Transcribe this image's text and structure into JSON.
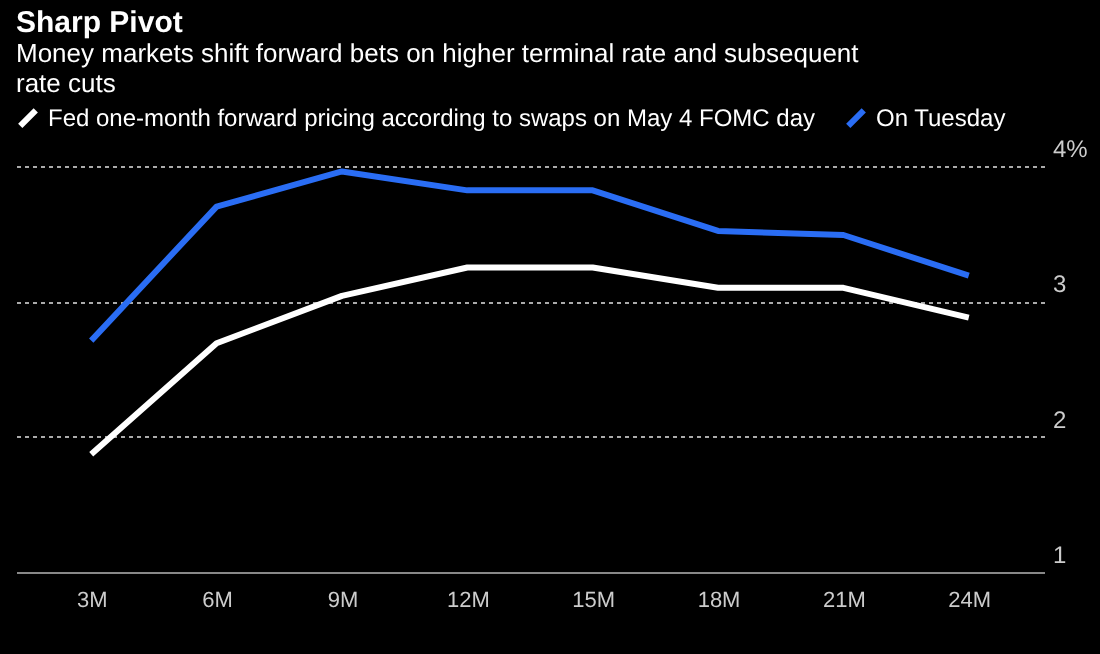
{
  "chart_data": {
    "type": "line",
    "title": "Sharp Pivot",
    "subtitle": "Money markets shift forward bets on higher terminal rate and subsequent rate cuts",
    "categories": [
      "3M",
      "6M",
      "9M",
      "12M",
      "15M",
      "18M",
      "21M",
      "24M"
    ],
    "series": [
      {
        "name": "Fed one-month forward pricing according to swaps on May 4 FOMC day",
        "color": "#ffffff",
        "values": [
          1.87,
          2.69,
          3.04,
          3.25,
          3.25,
          3.1,
          3.1,
          2.88
        ]
      },
      {
        "name": "On Tuesday",
        "color": "#2a6df4",
        "values": [
          2.71,
          3.7,
          3.96,
          3.82,
          3.82,
          3.52,
          3.49,
          3.19
        ]
      }
    ],
    "ylim": [
      1,
      4
    ],
    "yticks": [
      1,
      2,
      3,
      {
        "value": 4,
        "label": "4%"
      }
    ],
    "grid": "y",
    "legend": "top left",
    "line_style": "solid"
  }
}
